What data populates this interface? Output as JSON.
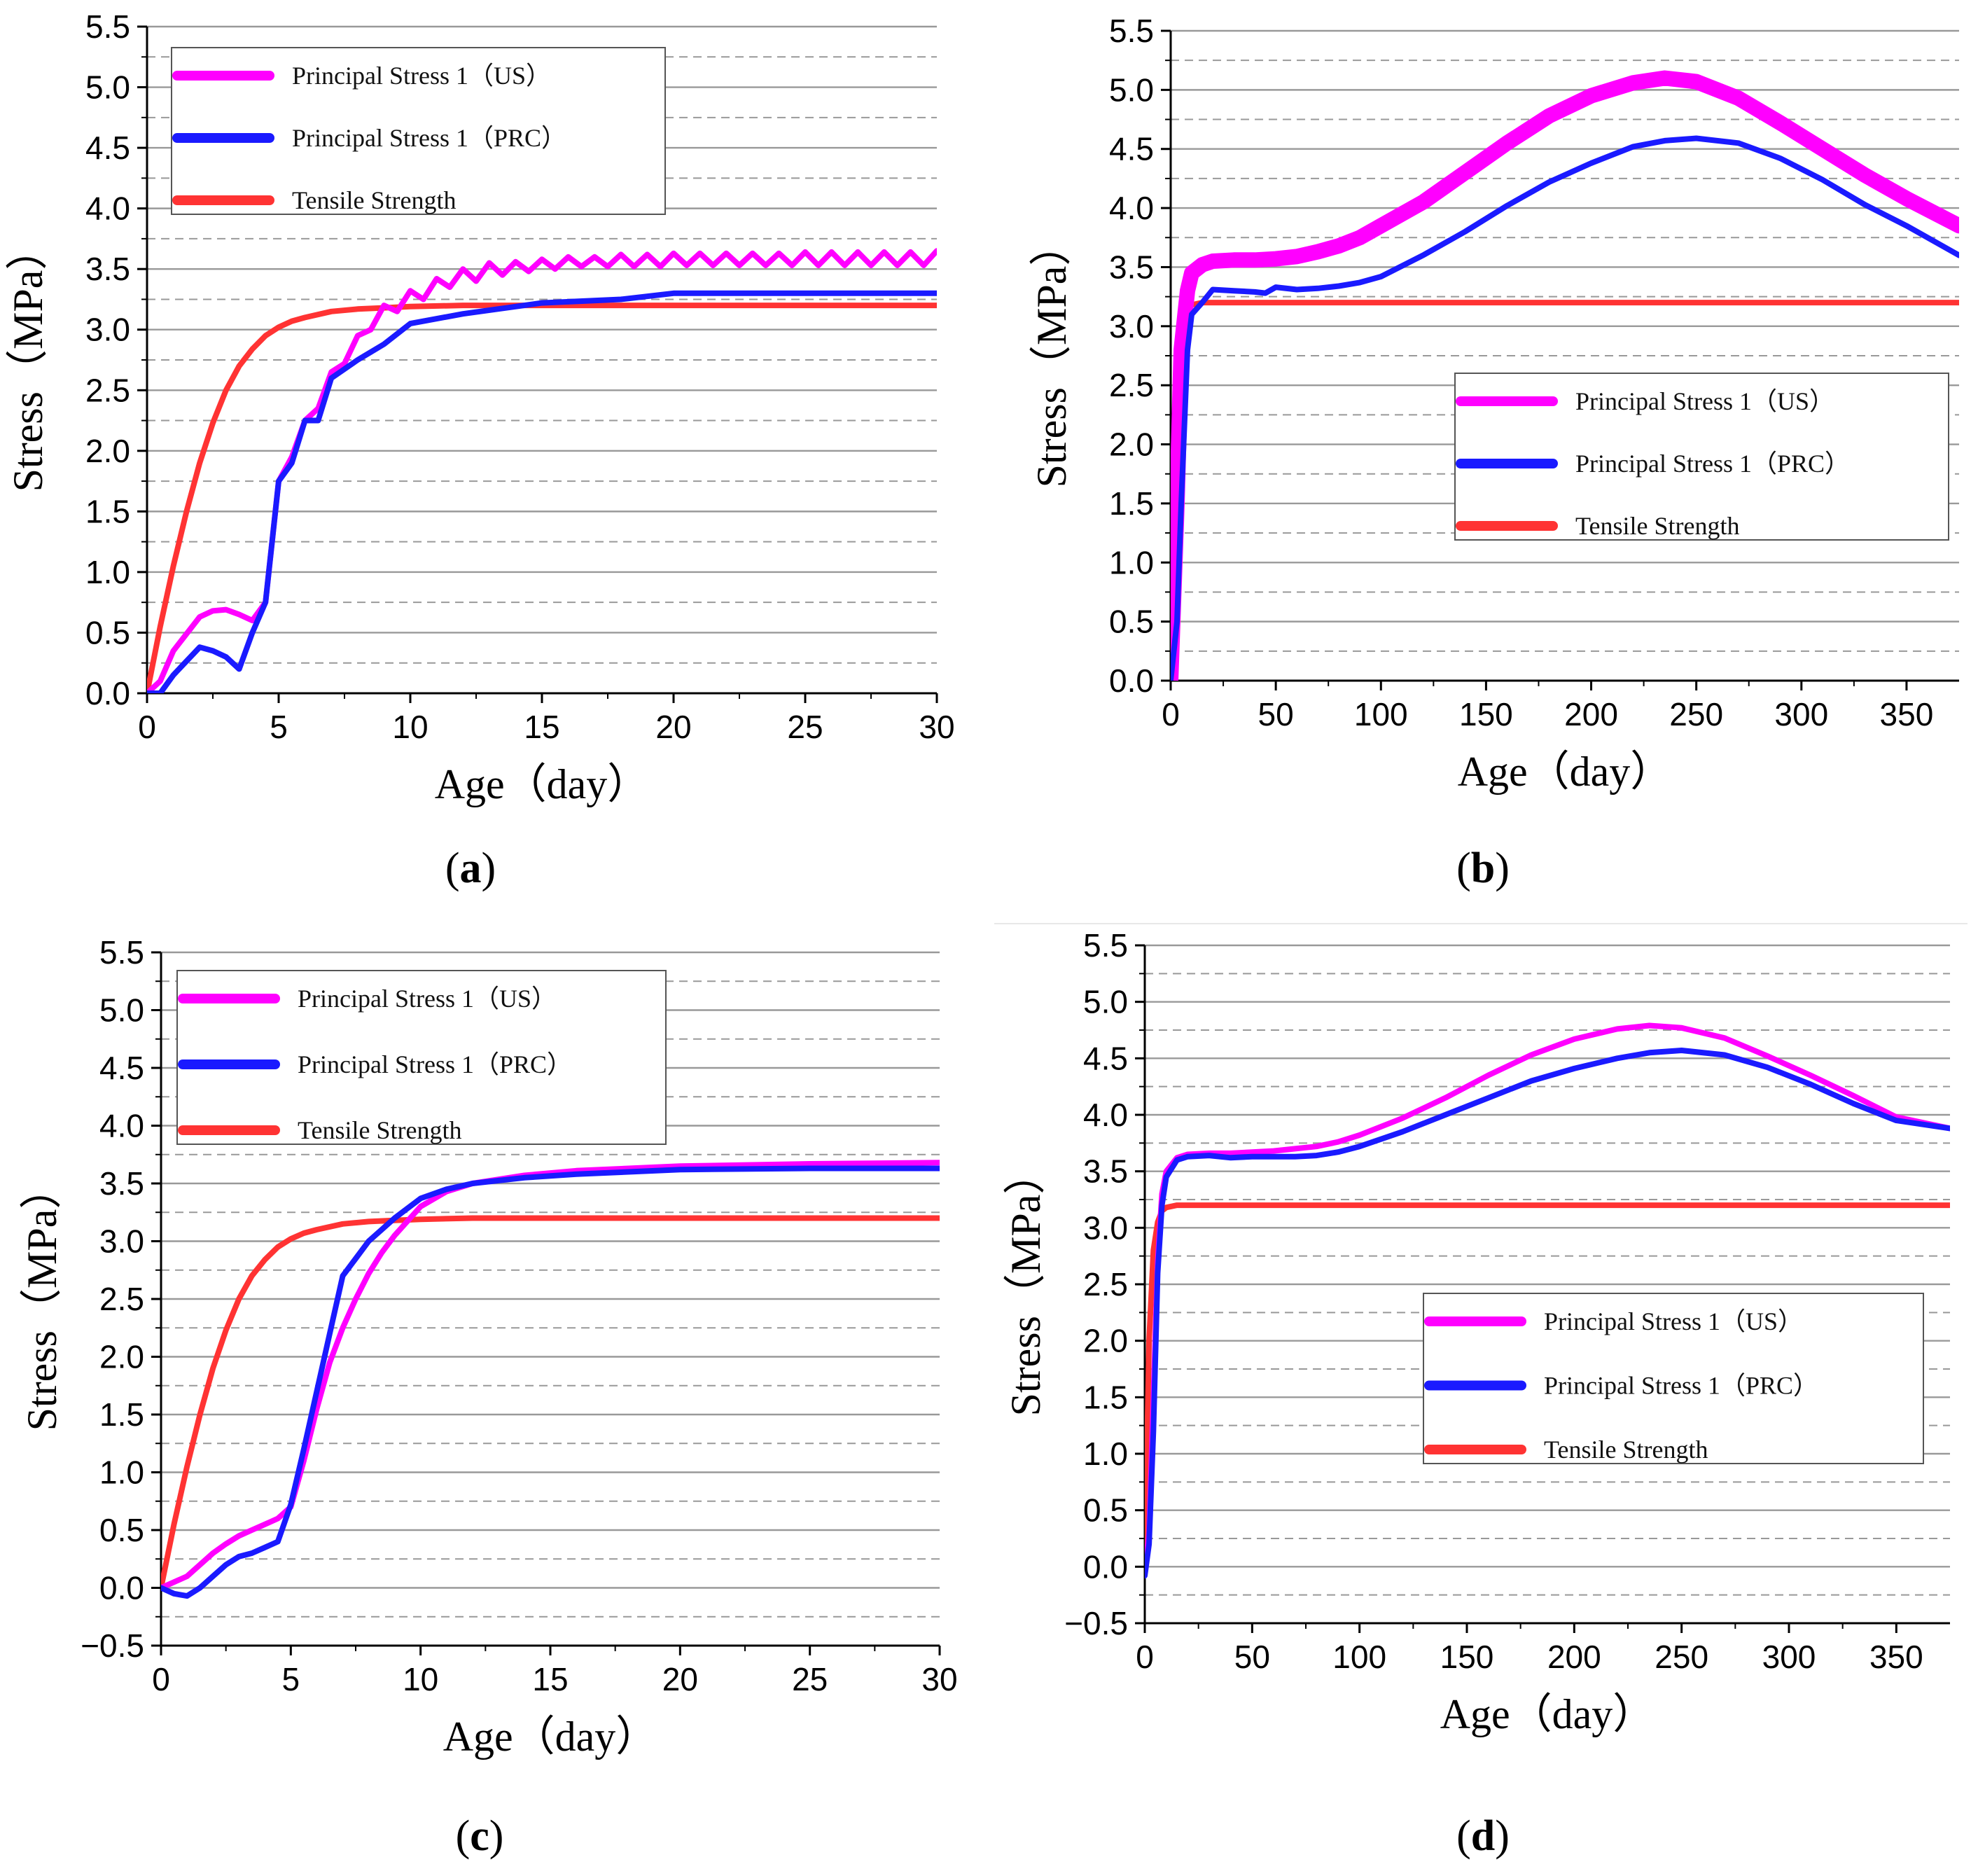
{
  "figure_title": "",
  "colors": {
    "us": "#ff00ff",
    "prc": "#1a1aff",
    "tensile": "#ff3333",
    "grid": "#999999",
    "axis": "#000000"
  },
  "chart_data": [
    {
      "id": "a",
      "caption": "a",
      "type": "line",
      "xlabel": "Age（day）",
      "ylabel": "Stress（MPa）",
      "xlim": [
        0,
        30
      ],
      "ylim": [
        0,
        5.5
      ],
      "xticks": [
        "0",
        "5",
        "10",
        "15",
        "20",
        "25",
        "30"
      ],
      "yticks": [
        "0.0",
        "0.5",
        "1.0",
        "1.5",
        "2.0",
        "2.5",
        "3.0",
        "3.5",
        "4.0",
        "4.5",
        "5.0",
        "5.5"
      ],
      "grid": true,
      "legend_position": "top-left",
      "series": [
        {
          "name": "Principal Stress 1（US）",
          "color": "us",
          "thick": true,
          "x": [
            0,
            0.5,
            1,
            2,
            2.5,
            3,
            3.5,
            4,
            4.5,
            5,
            5.5,
            6,
            6.5,
            7,
            7.5,
            8,
            8.5,
            9,
            9.5,
            10,
            10.5,
            11,
            11.5,
            12,
            12.5,
            13,
            13.5,
            14,
            14.5,
            15,
            15.5,
            16,
            16.5,
            17,
            17.5,
            18,
            18.5,
            19,
            19.5,
            20,
            20.5,
            21,
            21.5,
            22,
            22.5,
            23,
            23.5,
            24,
            24.5,
            25,
            25.5,
            26,
            26.5,
            27,
            27.5,
            28,
            28.5,
            29,
            29.5,
            30
          ],
          "y": [
            0,
            0.1,
            0.35,
            0.63,
            0.68,
            0.69,
            0.65,
            0.6,
            0.75,
            1.75,
            1.95,
            2.25,
            2.35,
            2.65,
            2.72,
            2.95,
            3.0,
            3.2,
            3.15,
            3.32,
            3.25,
            3.42,
            3.35,
            3.5,
            3.4,
            3.55,
            3.45,
            3.56,
            3.48,
            3.58,
            3.5,
            3.6,
            3.52,
            3.6,
            3.52,
            3.62,
            3.52,
            3.62,
            3.52,
            3.63,
            3.53,
            3.63,
            3.53,
            3.63,
            3.53,
            3.63,
            3.53,
            3.63,
            3.53,
            3.64,
            3.53,
            3.64,
            3.53,
            3.64,
            3.53,
            3.64,
            3.53,
            3.64,
            3.53,
            3.65
          ]
        },
        {
          "name": "Principal Stress 1（PRC）",
          "color": "prc",
          "thick": true,
          "x": [
            0,
            0.5,
            1,
            2,
            2.5,
            3,
            3.5,
            4,
            4.5,
            5,
            5.5,
            6,
            6.5,
            7,
            8,
            9,
            10,
            12,
            15,
            18,
            20,
            25,
            30
          ],
          "y": [
            0,
            0,
            0.15,
            0.38,
            0.35,
            0.3,
            0.2,
            0.5,
            0.75,
            1.75,
            1.9,
            2.25,
            2.25,
            2.6,
            2.75,
            2.88,
            3.05,
            3.13,
            3.22,
            3.25,
            3.3,
            3.3,
            3.3
          ]
        },
        {
          "name": "Tensile Strength",
          "color": "tensile",
          "thick": true,
          "x": [
            0,
            0.5,
            1,
            1.5,
            2,
            2.5,
            3,
            3.5,
            4,
            4.5,
            5,
            5.5,
            6,
            7,
            8,
            9,
            10,
            12,
            15,
            20,
            25,
            30
          ],
          "y": [
            0,
            0.55,
            1.05,
            1.5,
            1.9,
            2.23,
            2.5,
            2.7,
            2.84,
            2.95,
            3.02,
            3.07,
            3.1,
            3.15,
            3.17,
            3.18,
            3.19,
            3.2,
            3.2,
            3.2,
            3.2,
            3.2
          ]
        }
      ]
    },
    {
      "id": "b",
      "caption": "b",
      "type": "line",
      "xlabel": "Age（day）",
      "ylabel": "Stress（MPa）",
      "xlim": [
        0,
        375
      ],
      "ylim": [
        0,
        5.5
      ],
      "xticks": [
        "0",
        "50",
        "100",
        "150",
        "200",
        "250",
        "300",
        "350"
      ],
      "yticks": [
        "0.0",
        "0.5",
        "1.0",
        "1.5",
        "2.0",
        "2.5",
        "3.0",
        "3.5",
        "4.0",
        "4.5",
        "5.0",
        "5.5"
      ],
      "grid": true,
      "legend_position": "center-right",
      "series": [
        {
          "name": "Principal Stress 1（US）",
          "color": "us",
          "thick": true,
          "band": true,
          "x": [
            0,
            3,
            5,
            8,
            10,
            15,
            20,
            30,
            40,
            50,
            60,
            70,
            80,
            90,
            100,
            120,
            140,
            160,
            180,
            200,
            220,
            235,
            250,
            270,
            290,
            310,
            330,
            350,
            375
          ],
          "y": [
            0,
            1.5,
            2.8,
            3.3,
            3.45,
            3.52,
            3.55,
            3.56,
            3.56,
            3.57,
            3.59,
            3.63,
            3.68,
            3.75,
            3.85,
            4.05,
            4.3,
            4.55,
            4.78,
            4.95,
            5.06,
            5.1,
            5.07,
            4.93,
            4.72,
            4.5,
            4.28,
            4.08,
            3.85
          ]
        },
        {
          "name": "Principal Stress 1（PRC）",
          "color": "prc",
          "thick": true,
          "x": [
            0,
            3,
            5,
            8,
            10,
            15,
            20,
            30,
            40,
            45,
            50,
            60,
            70,
            80,
            90,
            100,
            120,
            140,
            160,
            180,
            200,
            220,
            235,
            250,
            270,
            290,
            310,
            330,
            350,
            375
          ],
          "y": [
            0,
            0.5,
            1.5,
            2.8,
            3.1,
            3.2,
            3.31,
            3.3,
            3.29,
            3.28,
            3.33,
            3.31,
            3.32,
            3.34,
            3.37,
            3.42,
            3.6,
            3.8,
            4.02,
            4.22,
            4.38,
            4.52,
            4.57,
            4.59,
            4.55,
            4.42,
            4.24,
            4.03,
            3.85,
            3.6
          ]
        },
        {
          "name": "Tensile Strength",
          "color": "tensile",
          "thick": true,
          "x": [
            0,
            2,
            4,
            6,
            8,
            10,
            15,
            20,
            375
          ],
          "y": [
            0,
            2.0,
            2.8,
            3.05,
            3.15,
            3.18,
            3.2,
            3.2,
            3.2
          ]
        }
      ]
    },
    {
      "id": "c",
      "caption": "c",
      "type": "line",
      "xlabel": "Age（day）",
      "ylabel": "Stress（MPa）",
      "xlim": [
        0,
        30
      ],
      "ylim": [
        -0.5,
        5.5
      ],
      "xticks": [
        "0",
        "5",
        "10",
        "15",
        "20",
        "25",
        "30"
      ],
      "yticks": [
        "−0.5",
        "0.0",
        "0.5",
        "1.0",
        "1.5",
        "2.0",
        "2.5",
        "3.0",
        "3.5",
        "4.0",
        "4.5",
        "5.0",
        "5.5"
      ],
      "grid": true,
      "legend_position": "top-left",
      "series": [
        {
          "name": "Principal Stress 1（US）",
          "color": "us",
          "thick": true,
          "x": [
            0,
            0.5,
            1,
            1.5,
            2,
            2.5,
            3,
            3.5,
            4,
            4.5,
            5,
            5.5,
            6,
            6.5,
            7,
            7.5,
            8,
            8.5,
            9,
            10,
            11,
            12,
            14,
            16,
            20,
            25,
            30
          ],
          "y": [
            0,
            0.05,
            0.1,
            0.2,
            0.3,
            0.38,
            0.45,
            0.5,
            0.55,
            0.6,
            0.7,
            1.1,
            1.55,
            1.95,
            2.25,
            2.5,
            2.72,
            2.9,
            3.05,
            3.3,
            3.43,
            3.5,
            3.57,
            3.61,
            3.65,
            3.67,
            3.68
          ]
        },
        {
          "name": "Principal Stress 1（PRC）",
          "color": "prc",
          "thick": true,
          "x": [
            0,
            0.5,
            1,
            1.5,
            2,
            2.5,
            3,
            3.5,
            4,
            4.5,
            5,
            5.5,
            6,
            6.5,
            7,
            7.5,
            8,
            8.5,
            9,
            10,
            11,
            12,
            14,
            16,
            20,
            25,
            30
          ],
          "y": [
            0,
            -0.05,
            -0.07,
            0.0,
            0.1,
            0.2,
            0.27,
            0.3,
            0.35,
            0.4,
            0.72,
            1.2,
            1.7,
            2.2,
            2.7,
            2.85,
            3.0,
            3.1,
            3.2,
            3.37,
            3.45,
            3.5,
            3.55,
            3.58,
            3.62,
            3.63,
            3.63
          ]
        },
        {
          "name": "Tensile Strength",
          "color": "tensile",
          "thick": true,
          "x": [
            0,
            0.5,
            1,
            1.5,
            2,
            2.5,
            3,
            3.5,
            4,
            4.5,
            5,
            5.5,
            6,
            7,
            8,
            9,
            10,
            12,
            15,
            20,
            25,
            30
          ],
          "y": [
            0,
            0.55,
            1.05,
            1.5,
            1.9,
            2.23,
            2.5,
            2.7,
            2.84,
            2.95,
            3.02,
            3.07,
            3.1,
            3.15,
            3.17,
            3.18,
            3.19,
            3.2,
            3.2,
            3.2,
            3.2,
            3.2
          ]
        }
      ]
    },
    {
      "id": "d",
      "caption": "d",
      "type": "line",
      "xlabel": "Age（day）",
      "ylabel": "Stress（MPa）",
      "xlim": [
        0,
        375
      ],
      "ylim": [
        -0.5,
        5.5
      ],
      "xticks": [
        "0",
        "50",
        "100",
        "150",
        "200",
        "250",
        "300",
        "350"
      ],
      "yticks": [
        "−0.5",
        "0.0",
        "0.5",
        "1.0",
        "1.5",
        "2.0",
        "2.5",
        "3.0",
        "3.5",
        "4.0",
        "4.5",
        "5.0",
        "5.5"
      ],
      "grid": true,
      "legend_position": "center-right",
      "series": [
        {
          "name": "Principal Stress 1（US）",
          "color": "us",
          "thick": true,
          "x": [
            0,
            2,
            4,
            6,
            8,
            10,
            15,
            20,
            30,
            40,
            50,
            60,
            70,
            80,
            90,
            100,
            120,
            140,
            160,
            180,
            200,
            220,
            235,
            250,
            270,
            290,
            310,
            330,
            350,
            375
          ],
          "y": [
            -0.05,
            0.3,
            1.5,
            2.7,
            3.3,
            3.5,
            3.62,
            3.65,
            3.66,
            3.66,
            3.67,
            3.68,
            3.7,
            3.72,
            3.76,
            3.82,
            3.97,
            4.15,
            4.35,
            4.53,
            4.67,
            4.76,
            4.79,
            4.77,
            4.68,
            4.52,
            4.35,
            4.17,
            3.98,
            3.88
          ]
        },
        {
          "name": "Principal Stress 1（PRC）",
          "color": "prc",
          "thick": true,
          "x": [
            0,
            2,
            4,
            6,
            8,
            10,
            15,
            20,
            30,
            40,
            50,
            60,
            70,
            80,
            90,
            100,
            120,
            140,
            160,
            180,
            200,
            220,
            235,
            250,
            270,
            290,
            310,
            330,
            350,
            375
          ],
          "y": [
            -0.08,
            0.2,
            1.2,
            2.6,
            3.2,
            3.45,
            3.6,
            3.63,
            3.64,
            3.62,
            3.63,
            3.63,
            3.63,
            3.64,
            3.67,
            3.72,
            3.85,
            4.0,
            4.15,
            4.3,
            4.41,
            4.5,
            4.55,
            4.57,
            4.53,
            4.42,
            4.27,
            4.1,
            3.95,
            3.88
          ]
        },
        {
          "name": "Tensile Strength",
          "color": "tensile",
          "thick": true,
          "x": [
            0,
            2,
            4,
            6,
            8,
            10,
            15,
            20,
            375
          ],
          "y": [
            0,
            2.0,
            2.8,
            3.05,
            3.15,
            3.18,
            3.2,
            3.2,
            3.2
          ]
        }
      ]
    }
  ]
}
